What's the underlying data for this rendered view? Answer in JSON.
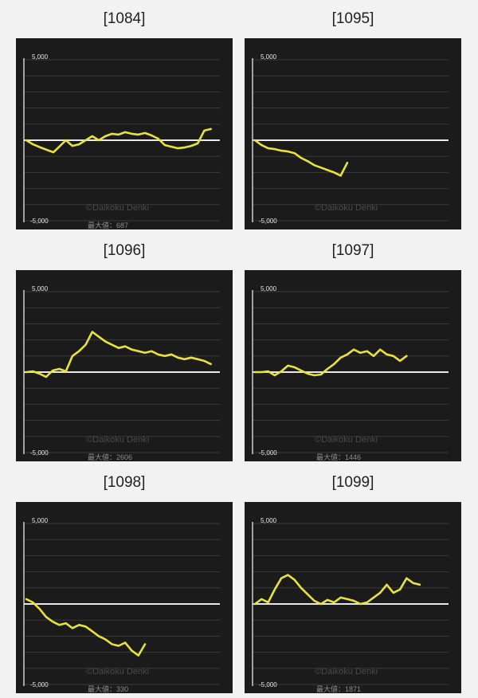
{
  "colors": {
    "panel": "#1b1b1b",
    "grid": "#3b3b3b",
    "zero": "#e8e8e8",
    "line": "#e8e23a"
  },
  "watermark": "©Daikoku Denki",
  "chart_data": [
    {
      "type": "line",
      "title": "[1084]",
      "ylim": [
        -5000,
        5000
      ],
      "yticks": [
        "5,000",
        "-5,000"
      ],
      "max_label": "最大値：687",
      "x": [
        0,
        8,
        15,
        25,
        33,
        40,
        48,
        56,
        64,
        72,
        80,
        88,
        96,
        104,
        112,
        120,
        128,
        136,
        144,
        152,
        160,
        168,
        176,
        184,
        192,
        200,
        208,
        216,
        224
      ],
      "values": [
        0,
        -250,
        -400,
        -600,
        -750,
        -400,
        0,
        -350,
        -250,
        0,
        250,
        0,
        250,
        400,
        350,
        500,
        400,
        350,
        450,
        300,
        100,
        -300,
        -400,
        -500,
        -450,
        -350,
        -200,
        600,
        700
      ]
    },
    {
      "type": "line",
      "title": "[1095]",
      "ylim": [
        -5000,
        5000
      ],
      "yticks": [
        "5,000",
        "-5,000"
      ],
      "max_label": "",
      "x": [
        0,
        8,
        16,
        24,
        32,
        40,
        48,
        56,
        64,
        72,
        80,
        88,
        96,
        104,
        112
      ],
      "values": [
        0,
        -300,
        -500,
        -550,
        -650,
        -700,
        -800,
        -1100,
        -1300,
        -1550,
        -1700,
        -1850,
        -2000,
        -2200,
        -1400
      ]
    },
    {
      "type": "line",
      "title": "[1096]",
      "ylim": [
        -5000,
        5000
      ],
      "yticks": [
        "5,000",
        "-5,000"
      ],
      "max_label": "最大値：2606",
      "x": [
        0,
        8,
        16,
        24,
        32,
        40,
        48,
        56,
        64,
        72,
        80,
        88,
        96,
        104,
        112,
        120,
        128,
        136,
        144,
        152,
        160,
        168,
        176,
        184,
        192,
        200,
        208,
        216,
        224
      ],
      "values": [
        0,
        50,
        -100,
        -300,
        100,
        200,
        50,
        1000,
        1300,
        1700,
        2500,
        2200,
        1900,
        1700,
        1500,
        1600,
        1400,
        1300,
        1200,
        1300,
        1100,
        1000,
        1100,
        900,
        800,
        900,
        800,
        700,
        500
      ]
    },
    {
      "type": "line",
      "title": "[1097]",
      "ylim": [
        -5000,
        5000
      ],
      "yticks": [
        "5,000",
        "-5,000"
      ],
      "max_label": "最大値：1446",
      "x": [
        0,
        8,
        16,
        24,
        32,
        40,
        48,
        56,
        64,
        72,
        80,
        88,
        96,
        104,
        112,
        120,
        128,
        136,
        144,
        152,
        160,
        168,
        176,
        184
      ],
      "values": [
        0,
        0,
        50,
        -200,
        50,
        400,
        300,
        100,
        -100,
        -200,
        -150,
        200,
        500,
        900,
        1100,
        1400,
        1200,
        1300,
        1000,
        1400,
        1100,
        1000,
        700,
        1000
      ]
    },
    {
      "type": "line",
      "title": "[1098]",
      "ylim": [
        -5000,
        5000
      ],
      "yticks": [
        "5,000",
        "-5,000"
      ],
      "max_label": "最大値：330",
      "x": [
        0,
        8,
        16,
        24,
        32,
        40,
        48,
        56,
        64,
        72,
        80,
        88,
        96,
        104,
        112,
        120,
        128,
        136,
        144
      ],
      "values": [
        300,
        100,
        -300,
        -800,
        -1100,
        -1300,
        -1200,
        -1500,
        -1300,
        -1400,
        -1700,
        -2000,
        -2200,
        -2500,
        -2600,
        -2400,
        -2900,
        -3200,
        -2500
      ]
    },
    {
      "type": "line",
      "title": "[1099]",
      "ylim": [
        -5000,
        5000
      ],
      "yticks": [
        "5,000",
        "-5,000"
      ],
      "max_label": "最大値：1871",
      "x": [
        0,
        8,
        16,
        24,
        32,
        40,
        48,
        56,
        64,
        72,
        80,
        88,
        96,
        104,
        112,
        120,
        128,
        136,
        144,
        152,
        160,
        168,
        176,
        184,
        192,
        200
      ],
      "values": [
        0,
        300,
        100,
        900,
        1600,
        1800,
        1500,
        1000,
        600,
        200,
        0,
        250,
        100,
        400,
        300,
        200,
        0,
        100,
        400,
        700,
        1200,
        700,
        900,
        1600,
        1300,
        1200
      ]
    }
  ]
}
